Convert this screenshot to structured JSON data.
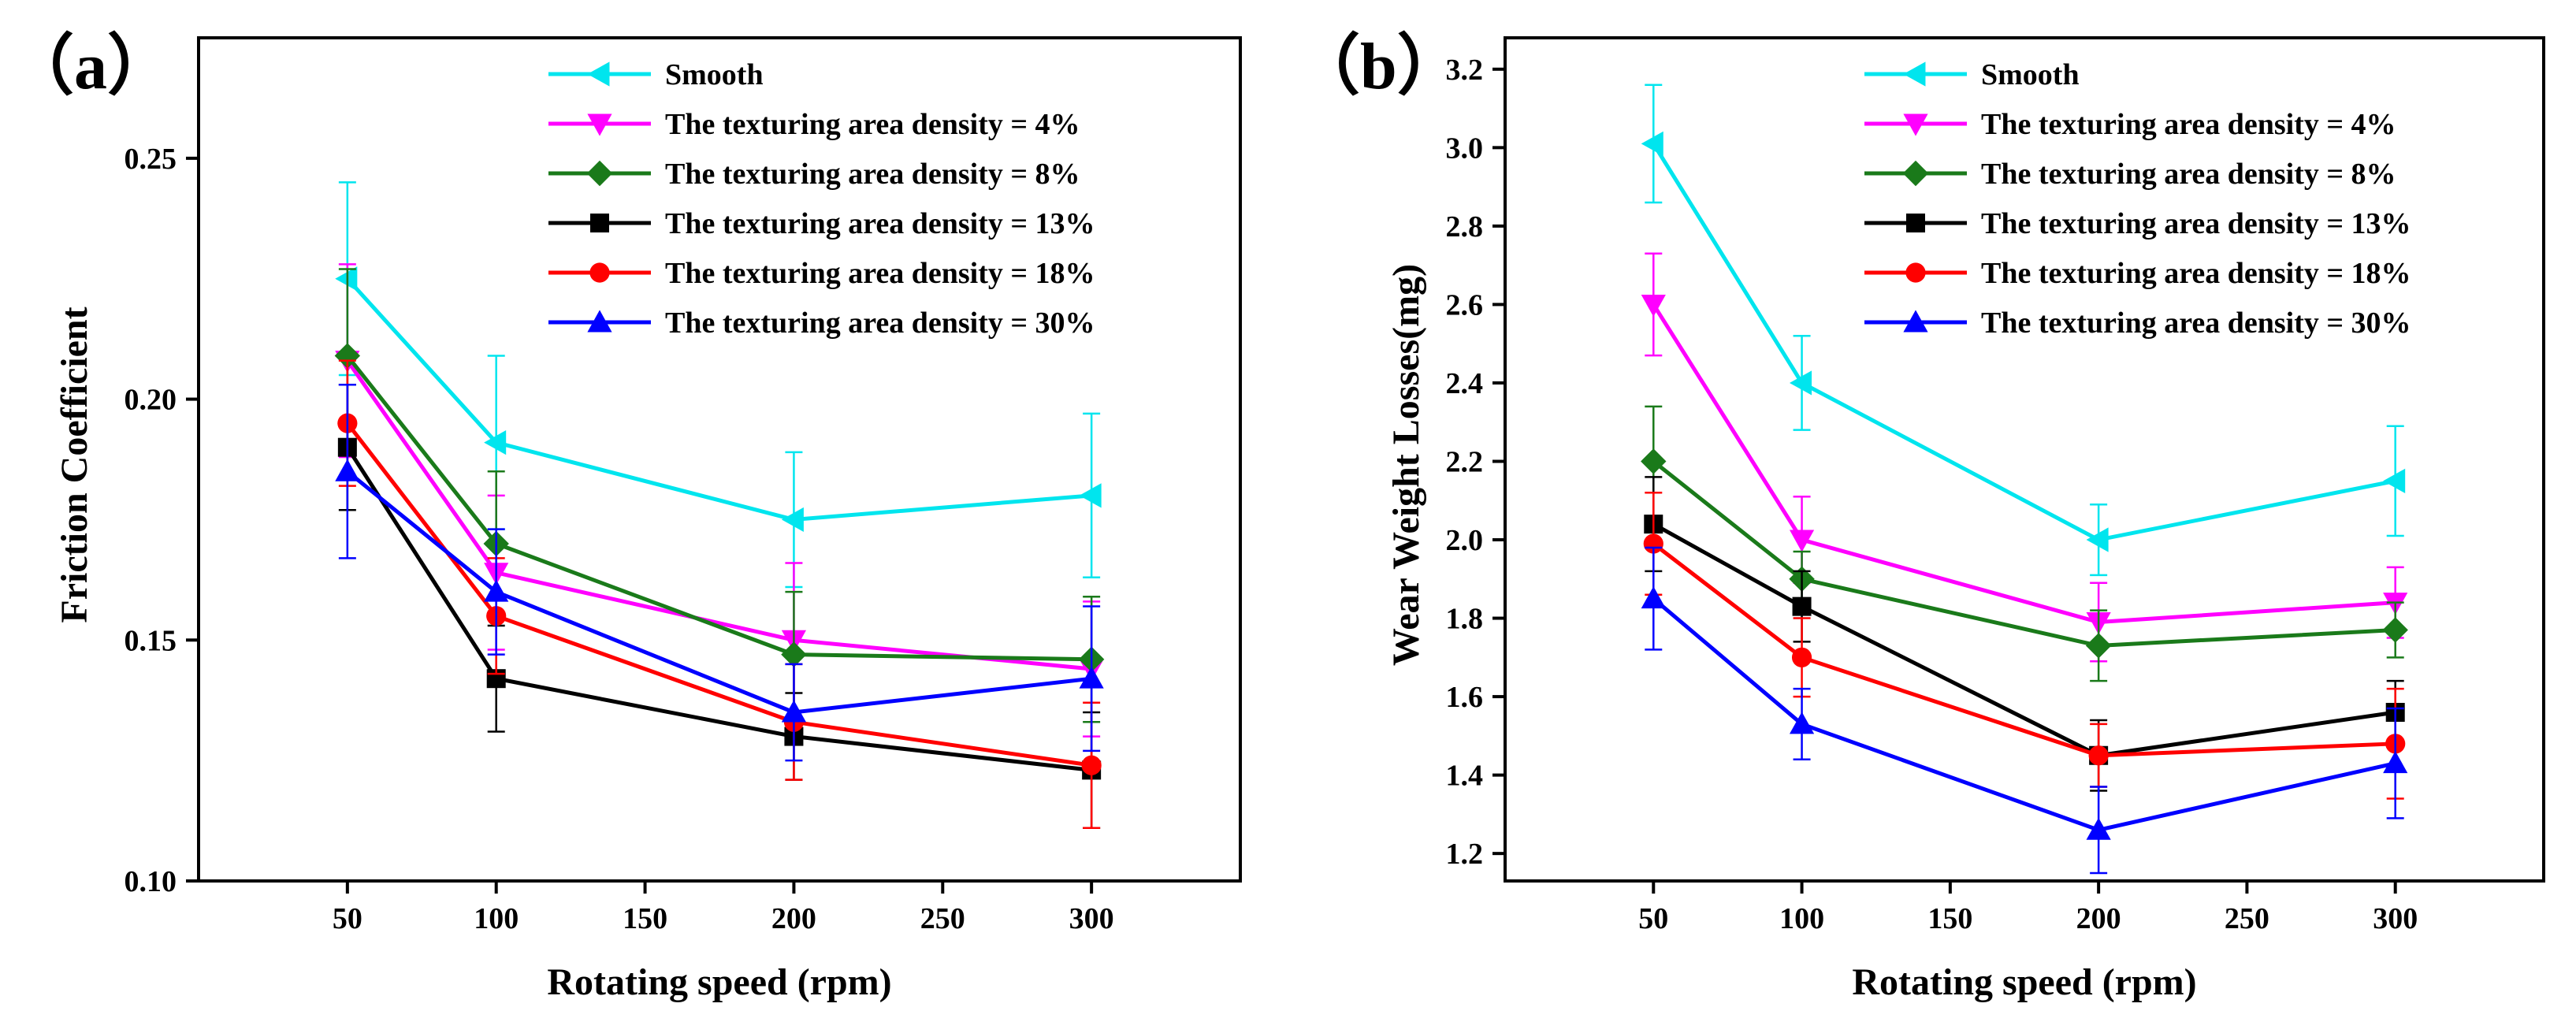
{
  "chart_data": [
    {
      "type": "line",
      "panel_label": "（a）",
      "title": "",
      "xlabel": "Rotating speed (rpm)",
      "ylabel": "Friction Coefficient",
      "x": [
        50,
        100,
        200,
        300
      ],
      "xlim": [
        0,
        350
      ],
      "ylim": [
        0.1,
        0.275
      ],
      "xticks": [
        50,
        100,
        150,
        200,
        250,
        300
      ],
      "yticks": [
        0.1,
        0.15,
        0.2,
        0.25
      ],
      "xtick_labels": [
        "50",
        "100",
        "150",
        "200",
        "250",
        "300"
      ],
      "ytick_labels": [
        "0.10",
        "0.15",
        "0.20",
        "0.25"
      ],
      "legend_position": "top-right",
      "series": [
        {
          "name": "Smooth",
          "color": "#00e5ee",
          "marker": "triangle-left",
          "values": [
            0.225,
            0.191,
            0.175,
            0.18
          ],
          "errors": [
            0.02,
            0.018,
            0.014,
            0.017
          ]
        },
        {
          "name": "The texturing area density = 4%",
          "color": "#ff00ff",
          "marker": "triangle-down",
          "values": [
            0.208,
            0.164,
            0.15,
            0.144
          ],
          "errors": [
            0.02,
            0.016,
            0.016,
            0.014
          ]
        },
        {
          "name": "The texturing area density = 8%",
          "color": "#1a7a1a",
          "marker": "diamond",
          "values": [
            0.209,
            0.17,
            0.147,
            0.146
          ],
          "errors": [
            0.018,
            0.015,
            0.013,
            0.013
          ]
        },
        {
          "name": "The texturing area density = 13%",
          "color": "#000000",
          "marker": "square",
          "values": [
            0.19,
            0.142,
            0.13,
            0.123
          ],
          "errors": [
            0.013,
            0.011,
            0.009,
            0.012
          ]
        },
        {
          "name": "The texturing area density = 18%",
          "color": "#ff0000",
          "marker": "circle",
          "values": [
            0.195,
            0.155,
            0.133,
            0.124
          ],
          "errors": [
            0.013,
            0.012,
            0.012,
            0.013
          ]
        },
        {
          "name": "The texturing area density = 30%",
          "color": "#0000ff",
          "marker": "triangle-up",
          "values": [
            0.185,
            0.16,
            0.135,
            0.142
          ],
          "errors": [
            0.018,
            0.013,
            0.01,
            0.015
          ]
        }
      ]
    },
    {
      "type": "line",
      "panel_label": "（b）",
      "title": "",
      "xlabel": "Rotating speed (rpm)",
      "ylabel": "Wear Weight Losses(mg)",
      "x": [
        50,
        100,
        200,
        300
      ],
      "xlim": [
        0,
        350
      ],
      "ylim": [
        1.13,
        3.28
      ],
      "xticks": [
        50,
        100,
        150,
        200,
        250,
        300
      ],
      "yticks": [
        1.2,
        1.4,
        1.6,
        1.8,
        2.0,
        2.2,
        2.4,
        2.6,
        2.8,
        3.0,
        3.2
      ],
      "xtick_labels": [
        "50",
        "100",
        "150",
        "200",
        "250",
        "300"
      ],
      "ytick_labels": [
        "1.2",
        "1.4",
        "1.6",
        "1.8",
        "2.0",
        "2.2",
        "2.4",
        "2.6",
        "2.8",
        "3.0",
        "3.2"
      ],
      "legend_position": "top-right",
      "series": [
        {
          "name": "Smooth",
          "color": "#00e5ee",
          "marker": "triangle-left",
          "values": [
            3.01,
            2.4,
            2.0,
            2.15
          ],
          "errors": [
            0.15,
            0.12,
            0.09,
            0.14
          ]
        },
        {
          "name": "The texturing area density = 4%",
          "color": "#ff00ff",
          "marker": "triangle-down",
          "values": [
            2.6,
            2.0,
            1.79,
            1.84
          ],
          "errors": [
            0.13,
            0.11,
            0.1,
            0.09
          ]
        },
        {
          "name": "The texturing area density = 8%",
          "color": "#1a7a1a",
          "marker": "diamond",
          "values": [
            2.2,
            1.9,
            1.73,
            1.77
          ],
          "errors": [
            0.14,
            0.07,
            0.09,
            0.07
          ]
        },
        {
          "name": "The texturing area density = 13%",
          "color": "#000000",
          "marker": "square",
          "values": [
            2.04,
            1.83,
            1.45,
            1.56
          ],
          "errors": [
            0.12,
            0.09,
            0.09,
            0.08
          ]
        },
        {
          "name": "The texturing area density = 18%",
          "color": "#ff0000",
          "marker": "circle",
          "values": [
            1.99,
            1.7,
            1.45,
            1.48
          ],
          "errors": [
            0.13,
            0.1,
            0.08,
            0.14
          ]
        },
        {
          "name": "The texturing area density = 30%",
          "color": "#0000ff",
          "marker": "triangle-up",
          "values": [
            1.85,
            1.53,
            1.26,
            1.43
          ],
          "errors": [
            0.13,
            0.09,
            0.11,
            0.14
          ]
        }
      ]
    }
  ]
}
